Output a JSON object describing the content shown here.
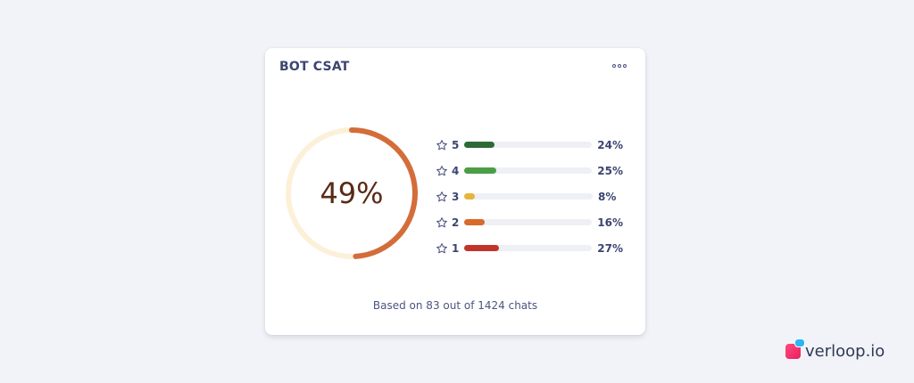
{
  "card": {
    "title": "BOT CSAT",
    "more_icon": "more-horizontal-icon"
  },
  "donut": {
    "value_label": "49%",
    "fraction": 0.49,
    "arc_color": "#d36d3a",
    "track_color": "#fdf0d9"
  },
  "ratings": [
    {
      "label": "5",
      "percent_label": "24%",
      "fill_fraction": 0.24,
      "color": "#2e6a37",
      "icon": "star-outline-icon"
    },
    {
      "label": "4",
      "percent_label": "25%",
      "fill_fraction": 0.25,
      "color": "#4b9e45",
      "icon": "star-outline-icon"
    },
    {
      "label": "3",
      "percent_label": "8%",
      "fill_fraction": 0.08,
      "color": "#e6b53c",
      "icon": "star-outline-icon"
    },
    {
      "label": "2",
      "percent_label": "16%",
      "fill_fraction": 0.16,
      "color": "#d86a2b",
      "icon": "star-outline-icon"
    },
    {
      "label": "1",
      "percent_label": "27%",
      "fill_fraction": 0.27,
      "color": "#c0352b",
      "icon": "star-outline-icon"
    }
  ],
  "footer": {
    "note": "Based on 83 out of 1424 chats"
  },
  "brand": {
    "name": "verloop.io",
    "logo_icon": "verloop-logo-icon"
  }
}
